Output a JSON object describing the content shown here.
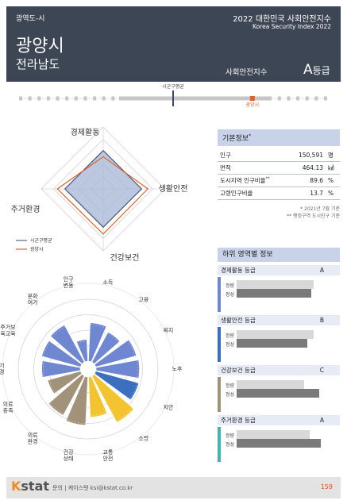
{
  "header": {
    "region_type": "광역도-시",
    "report_title": "2022 대한민국 사회안전지수",
    "report_title_en": "Korea Security Index 2022",
    "city": "광양시",
    "province": "전라남도",
    "index_label": "사회안전지수",
    "grade_letter": "A",
    "grade_suffix": "등급"
  },
  "position_scale": {
    "avg_label": "시군구평균",
    "city_label": "광양시",
    "avg_value": 0.5,
    "city_value": 0.76
  },
  "colors": {
    "header_bg": "#3d4654",
    "avg": "#3b4a6b",
    "city": "#e0622e",
    "economy": "#6f86d1",
    "living_safety": "#3b6fc0",
    "health": "#f4c430",
    "environment": "#a3927a",
    "panel_title_bg": "#c8d3ea"
  },
  "radar": {
    "axes": [
      "경제활동",
      "생활안전",
      "건강보건",
      "주거환경"
    ],
    "legend": [
      "시군구평균",
      "광양시"
    ],
    "avg_values": [
      0.62,
      0.62,
      0.62,
      0.62
    ],
    "city_values": [
      0.52,
      0.72,
      0.73,
      0.74
    ]
  },
  "basic_info": {
    "title": "기본정보",
    "title_mark": "*",
    "rows": [
      {
        "label": "인구",
        "value": "150,591",
        "unit": "명"
      },
      {
        "label": "면적",
        "value": "464.13",
        "unit": "㎢"
      },
      {
        "label": "도시지역 인구비율",
        "label_mark": "**",
        "value": "89.6",
        "unit": "%"
      },
      {
        "label": "고령인구비율",
        "value": "13.7",
        "unit": "%"
      }
    ],
    "notes": [
      "* 2021년 7월 기준",
      "** 행정구역 도시인구 기준"
    ]
  },
  "polar_chart": {
    "labels": [
      "소득",
      "고용",
      "복지",
      "노후",
      "치안",
      "소방",
      "교통안전",
      "건강상태",
      "의료환경",
      "의료충족",
      "대기환경",
      "주거보육교육",
      "문화여가",
      "인구변동"
    ],
    "values": [
      0.62,
      0.55,
      0.68,
      0.7,
      0.72,
      0.85,
      0.65,
      0.78,
      0.72,
      0.55,
      0.62,
      0.65,
      0.68,
      0.35
    ],
    "groups": [
      "economy",
      "economy",
      "economy",
      "economy",
      "living_safety",
      "health",
      "health",
      "environment",
      "environment",
      "environment",
      "economy",
      "economy",
      "economy",
      "economy"
    ]
  },
  "sub_info": {
    "title": "하위 영역별 정보",
    "sections": [
      {
        "title": "경제활동 등급",
        "grade": "A",
        "color": "#6f86d1",
        "row_labels": [
          "정량",
          "정성"
        ],
        "values": [
          0.82,
          0.8
        ]
      },
      {
        "title": "생활안전 등급",
        "grade": "B",
        "color": "#3b6fc0",
        "row_labels": [
          "정량",
          "정성"
        ],
        "values": [
          0.82,
          0.75
        ]
      },
      {
        "title": "건강보건 등급",
        "grade": "C",
        "color": "#a3927a",
        "row_labels": [
          "정량",
          "정성"
        ],
        "values": [
          0.72,
          0.88
        ]
      },
      {
        "title": "주거환경 등급",
        "grade": "A",
        "color": "#3fb7ad",
        "row_labels": [
          "정량",
          "정성"
        ],
        "values": [
          0.78,
          0.9
        ]
      }
    ]
  },
  "footer": {
    "logo_k": "K",
    "logo_rest": "stat",
    "contact": "문의 | 케이스탯 ksi@kstat.co.kr",
    "page": "159"
  }
}
